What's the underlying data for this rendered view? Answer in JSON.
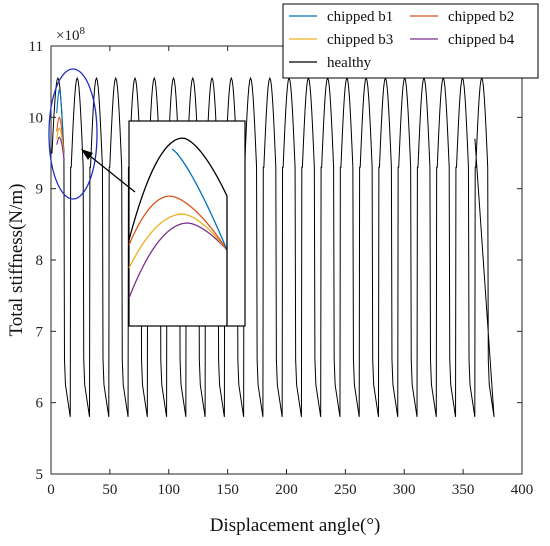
{
  "chart_data": {
    "type": "line",
    "xlabel": "Displacement angle(°)",
    "ylabel": "Total stiffness(N/m)",
    "y_exponent_label": "×10",
    "y_exponent_power": "8",
    "xlim": [
      0,
      400
    ],
    "ylim": [
      5,
      11
    ],
    "xticks": [
      0,
      50,
      100,
      150,
      200,
      250,
      300,
      350,
      400
    ],
    "yticks": [
      5,
      6,
      7,
      8,
      9,
      10,
      11
    ],
    "grid": false,
    "legend_position": "top-right",
    "mesh_period_deg": 16.36,
    "healthy_peak": 10.55,
    "healthy_min": 5.8,
    "double_contact_high": 6.6,
    "x_end": 360,
    "series": [
      {
        "name": "chipped b1",
        "color": "#0072bd",
        "peak": 10.38
      },
      {
        "name": "chipped b2",
        "color": "#d95319",
        "peak": 10.0
      },
      {
        "name": "chipped b3",
        "color": "#edb120",
        "peak": 9.85
      },
      {
        "name": "chipped b4",
        "color": "#7e2f8e",
        "peak": 9.72
      },
      {
        "name": "healthy",
        "color": "#000000",
        "peak": 10.55
      }
    ],
    "inset": {
      "zoom_of": "first tooth mesh region",
      "highlight_color": "#2030c0",
      "arrow": true
    }
  }
}
